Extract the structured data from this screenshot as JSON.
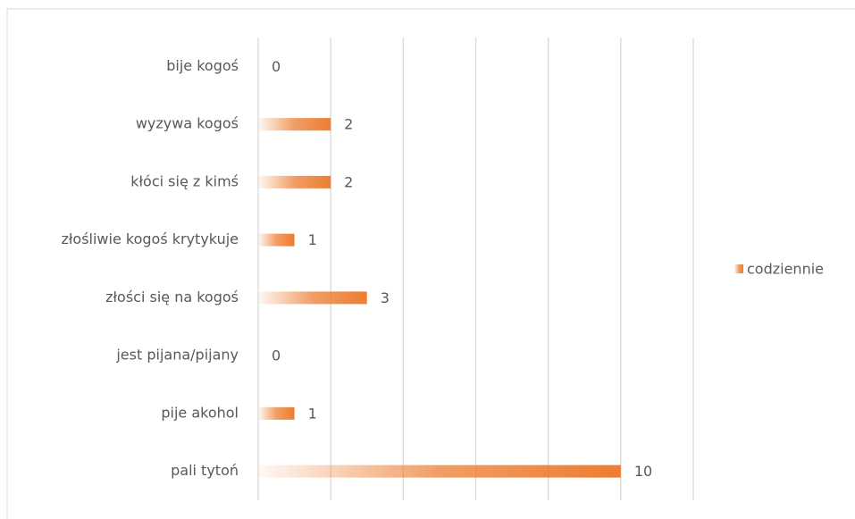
{
  "chart_data": {
    "type": "barh",
    "categories": [
      "bije kogoś",
      "wyzywa kogoś",
      "kłóci się z kimś",
      "złośliwie kogoś krytykuje",
      "złości się na kogoś",
      "jest pijana/pijany",
      "pije akohol",
      "pali tytoń"
    ],
    "series": [
      {
        "name": "codziennie",
        "color": "#ed7d31",
        "values": [
          0,
          2,
          2,
          1,
          3,
          0,
          1,
          10
        ]
      }
    ],
    "xlim": [
      0,
      12
    ],
    "xticks": [
      0,
      2,
      4,
      6,
      8,
      10,
      12
    ],
    "grid": true,
    "legend": "right"
  }
}
